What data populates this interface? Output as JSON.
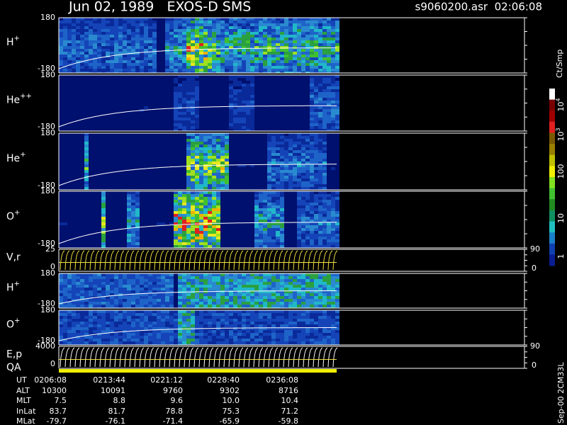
{
  "header": {
    "title": "Jun 02, 1989   EXOS-D SMS",
    "file": "s9060200.asr  02:06:08"
  },
  "panels": [
    {
      "label": "H",
      "sup": "+",
      "top_tick": "180",
      "bottom_tick": "-180"
    },
    {
      "label": "He",
      "sup": "++",
      "top_tick": "180",
      "bottom_tick": "-180"
    },
    {
      "label": "He",
      "sup": "+",
      "top_tick": "180",
      "bottom_tick": "-180"
    },
    {
      "label": "O",
      "sup": "+",
      "top_tick": "180",
      "bottom_tick": "-180"
    },
    {
      "label": "V,r",
      "top_tick": "25",
      "bottom_tick": "0",
      "right_top": "90",
      "right_bottom": "0"
    },
    {
      "label": "H",
      "sup": "+",
      "top_tick": "180",
      "bottom_tick": "-180"
    },
    {
      "label": "O",
      "sup": "+",
      "top_tick": "180",
      "bottom_tick": "-180"
    },
    {
      "label": "E,p",
      "top_tick": "4000",
      "bottom_tick": "0",
      "right_top": "90",
      "right_bottom": "0"
    }
  ],
  "qa_label": "QA",
  "colorbar": {
    "title": "Ct/Smp",
    "ticks": [
      {
        "base": "10",
        "exp": "4"
      },
      {
        "base": "10",
        "exp": "3"
      },
      {
        "base": "100"
      },
      {
        "base": "10"
      },
      {
        "base": "1"
      }
    ]
  },
  "footer": {
    "rows": [
      {
        "label": "UT",
        "values": [
          "0206:08",
          "0213:44",
          "0221:12",
          "0228:40",
          "0236:08"
        ]
      },
      {
        "label": "ALT",
        "values": [
          "10300",
          "10091",
          "9760",
          "9302",
          "8716"
        ]
      },
      {
        "label": "MLT",
        "values": [
          "7.5",
          "8.8",
          "9.6",
          "10.0",
          "10.4"
        ]
      },
      {
        "label": "InLat",
        "values": [
          "83.7",
          "81.7",
          "78.8",
          "75.3",
          "71.2"
        ]
      },
      {
        "label": "MLat",
        "values": [
          "-79.7",
          "-76.1",
          "-71.4",
          "-65.9",
          "-59.8"
        ]
      }
    ]
  },
  "side_note": "Sep-00 2CM33L"
}
